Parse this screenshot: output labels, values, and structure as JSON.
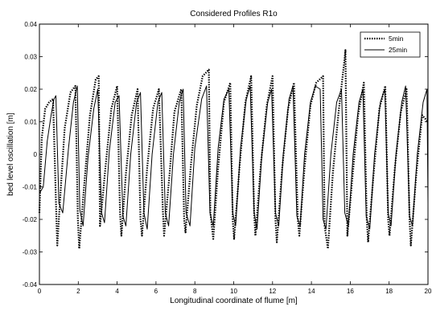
{
  "chart_data": {
    "type": "line",
    "title": "Considered Profiles R1o",
    "xlabel": "Longitudinal coordinate of flume [m]",
    "ylabel": "bed level oscillation [m]",
    "xlim": [
      0,
      20
    ],
    "ylim": [
      -0.04,
      0.04
    ],
    "x_ticks": [
      0,
      2,
      4,
      6,
      8,
      10,
      12,
      14,
      16,
      18,
      20
    ],
    "y_ticks": [
      -0.04,
      -0.03,
      -0.02,
      -0.01,
      0,
      0.01,
      0.02,
      0.03,
      0.04
    ],
    "x_tick_labels": [
      "0",
      "2",
      "4",
      "6",
      "8",
      "10",
      "12",
      "14",
      "16",
      "18",
      "20"
    ],
    "y_tick_labels": [
      "-0.04",
      "-0.03",
      "-0.02",
      "-0.01",
      "0",
      "0.01",
      "0.02",
      "0.03",
      "0.04"
    ],
    "grid": false,
    "legend_position": "top-right",
    "series": [
      {
        "name": "5min",
        "style": "dotted",
        "color": "#000000",
        "x": [
          0.0,
          0.12,
          0.3,
          0.5,
          0.7,
          0.88,
          0.92,
          1.05,
          1.3,
          1.6,
          1.85,
          1.98,
          2.05,
          2.3,
          2.6,
          2.9,
          3.05,
          3.12,
          3.4,
          3.7,
          4.0,
          4.15,
          4.22,
          4.45,
          4.75,
          5.05,
          5.2,
          5.28,
          5.55,
          5.85,
          6.15,
          6.35,
          6.42,
          6.7,
          6.95,
          7.3,
          7.45,
          7.52,
          7.8,
          8.1,
          8.4,
          8.72,
          8.8,
          8.95,
          9.2,
          9.5,
          9.82,
          9.95,
          10.02,
          10.3,
          10.6,
          10.9,
          11.05,
          11.12,
          11.4,
          11.7,
          12.0,
          12.15,
          12.22,
          12.5,
          12.8,
          13.1,
          13.3,
          13.38,
          13.65,
          13.95,
          14.25,
          14.6,
          14.68,
          14.85,
          15.1,
          15.4,
          15.7,
          15.75,
          15.85,
          16.1,
          16.4,
          16.7,
          16.85,
          16.92,
          17.2,
          17.5,
          17.8,
          17.95,
          18.02,
          18.3,
          18.6,
          18.9,
          19.05,
          19.12,
          19.4,
          19.7,
          20.0
        ],
        "y": [
          -0.018,
          0.005,
          0.014,
          0.016,
          0.017,
          -0.021,
          -0.028,
          -0.015,
          0.008,
          0.019,
          0.021,
          -0.02,
          -0.029,
          -0.01,
          0.012,
          0.023,
          0.024,
          -0.022,
          -0.004,
          0.014,
          0.021,
          -0.018,
          -0.025,
          -0.006,
          0.012,
          0.02,
          -0.02,
          -0.025,
          -0.004,
          0.014,
          0.02,
          -0.017,
          -0.025,
          -0.006,
          0.013,
          0.02,
          -0.02,
          -0.024,
          -0.003,
          0.015,
          0.024,
          0.026,
          -0.018,
          -0.026,
          -0.004,
          0.016,
          0.022,
          -0.02,
          -0.026,
          -0.004,
          0.016,
          0.024,
          -0.018,
          -0.025,
          -0.003,
          0.015,
          0.024,
          -0.02,
          -0.027,
          -0.004,
          0.014,
          0.022,
          -0.02,
          -0.025,
          -0.004,
          0.015,
          0.022,
          0.024,
          -0.022,
          -0.029,
          -0.006,
          0.013,
          0.029,
          0.032,
          -0.025,
          -0.008,
          0.012,
          0.022,
          -0.02,
          -0.027,
          -0.006,
          0.014,
          0.021,
          -0.02,
          -0.025,
          -0.004,
          0.013,
          0.02,
          -0.02,
          -0.028,
          -0.006,
          0.012,
          0.01
        ]
      },
      {
        "name": "25min",
        "style": "solid",
        "color": "#000000",
        "x": [
          0.0,
          0.2,
          0.4,
          0.6,
          0.75,
          0.85,
          1.0,
          1.2,
          1.5,
          1.75,
          1.95,
          2.08,
          2.25,
          2.5,
          2.8,
          3.0,
          3.2,
          3.35,
          3.6,
          3.9,
          4.1,
          4.3,
          4.45,
          4.7,
          5.0,
          5.2,
          5.38,
          5.55,
          5.8,
          6.1,
          6.3,
          6.48,
          6.65,
          6.9,
          7.2,
          7.4,
          7.55,
          7.75,
          8.0,
          8.35,
          8.6,
          8.78,
          8.95,
          9.2,
          9.5,
          9.75,
          9.95,
          10.1,
          10.35,
          10.65,
          10.85,
          11.05,
          11.2,
          11.45,
          11.75,
          11.95,
          12.15,
          12.32,
          12.55,
          12.85,
          13.05,
          13.25,
          13.42,
          13.65,
          13.95,
          14.2,
          14.45,
          14.6,
          14.75,
          15.0,
          15.3,
          15.55,
          15.72,
          15.9,
          16.15,
          16.45,
          16.65,
          16.82,
          17.0,
          17.25,
          17.55,
          17.78,
          17.95,
          18.1,
          18.35,
          18.65,
          18.85,
          19.05,
          19.2,
          19.45,
          19.75,
          19.95,
          20.0
        ],
        "y": [
          -0.012,
          -0.01,
          0.004,
          0.012,
          0.017,
          0.018,
          -0.015,
          -0.018,
          0.002,
          0.016,
          0.021,
          -0.017,
          -0.022,
          -0.001,
          0.014,
          0.02,
          -0.018,
          -0.021,
          0.001,
          0.016,
          0.018,
          -0.019,
          -0.022,
          0.0,
          0.016,
          0.019,
          -0.018,
          -0.023,
          0.0,
          0.016,
          0.019,
          -0.018,
          -0.022,
          0.0,
          0.016,
          0.02,
          -0.018,
          -0.022,
          0.002,
          0.017,
          0.021,
          -0.018,
          -0.022,
          0.002,
          0.017,
          0.02,
          -0.018,
          -0.022,
          0.002,
          0.017,
          0.021,
          -0.018,
          -0.023,
          0.0,
          0.016,
          0.02,
          -0.018,
          -0.022,
          0.0,
          0.017,
          0.021,
          -0.019,
          -0.022,
          0.0,
          0.016,
          0.021,
          0.02,
          -0.02,
          -0.023,
          0.0,
          0.016,
          0.02,
          -0.018,
          -0.022,
          0.0,
          0.016,
          0.02,
          -0.019,
          -0.023,
          0.0,
          0.016,
          0.02,
          -0.018,
          -0.022,
          0.0,
          0.016,
          0.021,
          -0.019,
          -0.022,
          0.0,
          0.016,
          0.02,
          -0.015
        ]
      }
    ]
  }
}
